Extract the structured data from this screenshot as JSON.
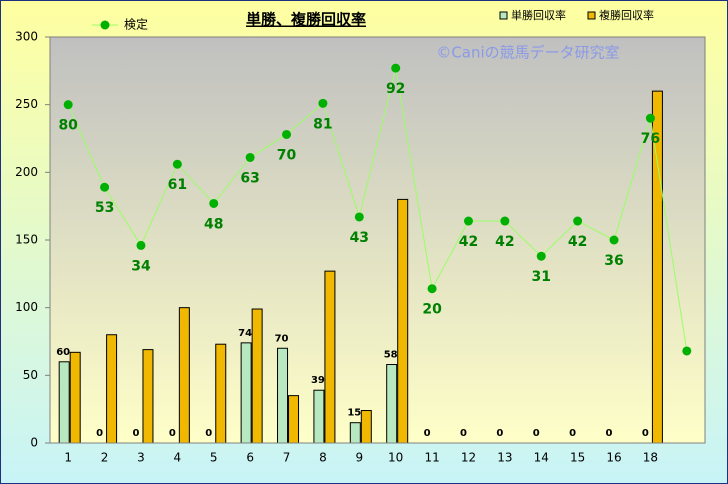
{
  "chart_data": {
    "type": "bar_line",
    "title": "単勝、複勝回収率",
    "watermark": "©Caniの競馬データ研究室",
    "categories": [
      "1",
      "2",
      "3",
      "4",
      "5",
      "6",
      "7",
      "8",
      "9",
      "10",
      "11",
      "12",
      "13",
      "14",
      "15",
      "16",
      "18",
      null
    ],
    "series": [
      {
        "name": "単勝回収率",
        "type": "bar",
        "color": "#b8e8c0",
        "values": [
          60,
          0,
          0,
          0,
          0,
          74,
          70,
          39,
          15,
          58,
          0,
          0,
          0,
          0,
          0,
          0,
          0,
          null
        ]
      },
      {
        "name": "複勝回収率",
        "type": "bar",
        "color": "#f0b800",
        "values": [
          67,
          80,
          69,
          100,
          73,
          99,
          35,
          127,
          24,
          180,
          0,
          0,
          0,
          0,
          0,
          0,
          260,
          null
        ]
      },
      {
        "name": "検定",
        "type": "line",
        "color": "#99ff66",
        "marker_color": "#00b000",
        "values": [
          250,
          189,
          146,
          206,
          177,
          211,
          228,
          251,
          167,
          277,
          114,
          164,
          164,
          138,
          164,
          150,
          240,
          68
        ],
        "point_labels": [
          80,
          53,
          34,
          61,
          48,
          63,
          70,
          81,
          43,
          92,
          20,
          42,
          42,
          31,
          42,
          36,
          76,
          null
        ]
      }
    ],
    "ylim": [
      0,
      300
    ],
    "yticks": [
      0,
      50,
      100,
      150,
      200,
      250,
      300
    ],
    "grid": false
  }
}
